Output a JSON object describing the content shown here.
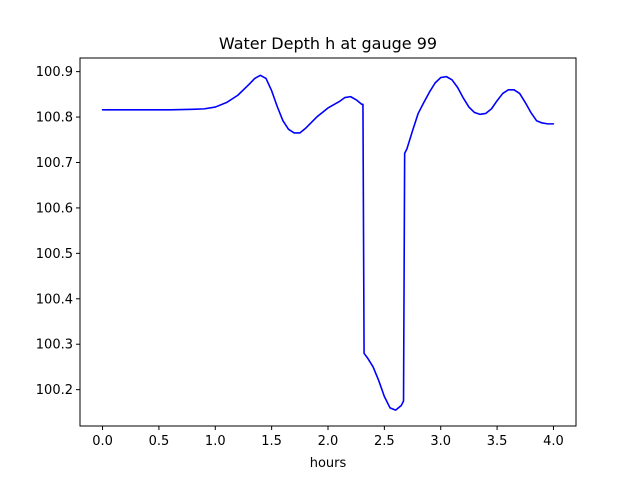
{
  "chart_data": {
    "type": "line",
    "title": "Water Depth h at gauge 99",
    "xlabel": "hours",
    "ylabel": "",
    "xlim": [
      -0.2,
      4.2
    ],
    "ylim": [
      100.12,
      100.93
    ],
    "x_ticks": [
      0.0,
      0.5,
      1.0,
      1.5,
      2.0,
      2.5,
      3.0,
      3.5,
      4.0
    ],
    "x_tick_labels": [
      "0.0",
      "0.5",
      "1.0",
      "1.5",
      "2.0",
      "2.5",
      "3.0",
      "3.5",
      "4.0"
    ],
    "y_ticks": [
      100.2,
      100.3,
      100.4,
      100.5,
      100.6,
      100.7,
      100.8,
      100.9
    ],
    "y_tick_labels": [
      "100.2",
      "100.3",
      "100.4",
      "100.5",
      "100.6",
      "100.7",
      "100.8",
      "100.9"
    ],
    "grid": false,
    "series": [
      {
        "color": "#0000ff",
        "x": [
          0.0,
          0.2,
          0.4,
          0.6,
          0.8,
          0.9,
          1.0,
          1.1,
          1.2,
          1.3,
          1.35,
          1.4,
          1.45,
          1.5,
          1.55,
          1.6,
          1.65,
          1.7,
          1.75,
          1.8,
          1.9,
          2.0,
          2.1,
          2.15,
          2.2,
          2.25,
          2.3,
          2.31,
          2.32,
          2.35,
          2.4,
          2.45,
          2.5,
          2.55,
          2.6,
          2.65,
          2.67,
          2.68,
          2.7,
          2.75,
          2.8,
          2.85,
          2.9,
          2.95,
          3.0,
          3.05,
          3.1,
          3.15,
          3.2,
          3.25,
          3.3,
          3.35,
          3.4,
          3.45,
          3.5,
          3.55,
          3.6,
          3.65,
          3.7,
          3.75,
          3.8,
          3.85,
          3.9,
          3.95,
          4.0
        ],
        "y": [
          100.816,
          100.816,
          100.816,
          100.816,
          100.817,
          100.818,
          100.822,
          100.832,
          100.848,
          100.872,
          100.885,
          100.892,
          100.885,
          100.858,
          100.823,
          100.792,
          100.773,
          100.765,
          100.765,
          100.775,
          100.8,
          100.82,
          100.834,
          100.843,
          100.845,
          100.838,
          100.828,
          100.828,
          100.28,
          100.27,
          100.25,
          100.22,
          100.185,
          100.16,
          100.155,
          100.165,
          100.175,
          100.72,
          100.73,
          100.77,
          100.808,
          100.832,
          100.855,
          100.875,
          100.887,
          100.889,
          100.882,
          100.865,
          100.842,
          100.822,
          100.81,
          100.806,
          100.808,
          100.818,
          100.836,
          100.852,
          100.86,
          100.86,
          100.852,
          100.832,
          100.81,
          100.792,
          100.787,
          100.785,
          100.785
        ]
      }
    ]
  }
}
